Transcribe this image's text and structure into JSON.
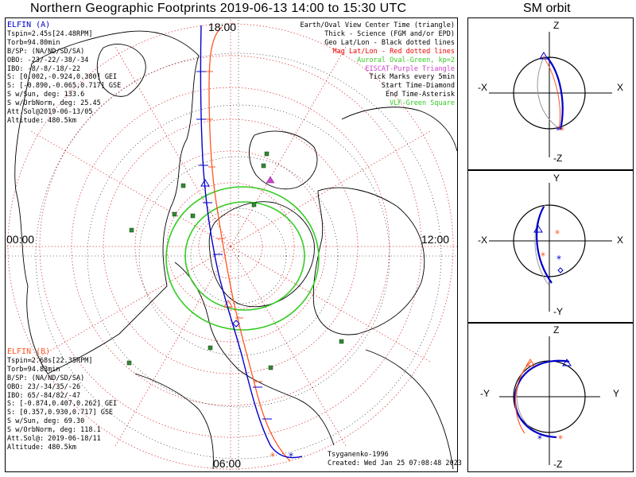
{
  "title": "Northern Geographic Footprints 2019-06-13 14:00 to 15:30 UTC",
  "sm_title": "SM orbit",
  "colors": {
    "elfin_a": "#0000cc",
    "elfin_b": "#ff5522",
    "aurora": "#33cc22",
    "grid": "#dd4444",
    "eiscat": "#cc44cc",
    "vlf": "#338833"
  },
  "map_labels": {
    "top": "18:00",
    "left": "00:00",
    "right": "12:00",
    "bottom": "06:00"
  },
  "elfin_a": {
    "name": "ELFIN (A)",
    "lines": [
      "Tspin=2.45s[24.48RPM]",
      "Torb=94.80min",
      "B/SP: (NA/ND/SD/SA)",
      "OBO: -23/-22/-38/-34",
      "IBO: -8/-8/-18/-22",
      "S: [0.002,-0.924,0.380] GEI",
      "S: [-0.890,-0.065,0.717] GSE",
      "S w/Sun, deg: 133.6",
      "S w/OrbNorm, deg: 25.45",
      "Att.Sol@2019-06-13/05",
      "Altitude: 480.5km"
    ]
  },
  "elfin_b": {
    "name": "ELFIN (B)",
    "lines": [
      "Tspin=2.68s[22.35RPM]",
      "Torb=94.83min",
      "B/SP: (NA/ND/SD/SA)",
      "OBO: 23/-34/35/-26",
      "IBO: 65/-84/82/-47",
      "S: [-0.874,0.407,0.262] GEI",
      "S: [0.357,0.930,0.717] GSE",
      "S w/Sun, deg: 69.30",
      "S w/OrbNorm, deg: 118.1",
      "Att.Sol@: 2019-06-18/11",
      "Altitude: 480.5km"
    ]
  },
  "legend": [
    {
      "text": "Earth/Oval View Center Time (triangle)",
      "color": "#000000"
    },
    {
      "text": "Thick - Science (FGM and/or EPD)",
      "color": "#000000"
    },
    {
      "text": "Geo Lat/Lon - Black dotted lines",
      "color": "#000000"
    },
    {
      "text": "Mag Lat/Lon - Red dotted lines",
      "color": "#ee0000"
    },
    {
      "text": "Auroral Oval-Green, kp=2",
      "color": "#33cc22"
    },
    {
      "text": "EISCAT-Purple Triangle",
      "color": "#cc44cc"
    },
    {
      "text": "Tick Marks every 5min",
      "color": "#000000"
    },
    {
      "text": "Start Time-Diamond",
      "color": "#000000"
    },
    {
      "text": "End Time-Asterisk",
      "color": "#000000"
    },
    {
      "text": "VLF-Green Square",
      "color": "#33cc22"
    }
  ],
  "footer": {
    "model": "Tsyganenko-1996",
    "created": "Created: Wed Jan 25 07:08:48 2023"
  },
  "sm_panels": {
    "p1": {
      "top": "Z",
      "bottom": "-Z",
      "left": "-X",
      "right": "X"
    },
    "p2": {
      "top": "Y",
      "bottom": "-Y",
      "left": "-X",
      "right": "X"
    },
    "p3": {
      "top": "Z",
      "bottom": "-Z",
      "left": "-Y",
      "right": "Y"
    }
  }
}
